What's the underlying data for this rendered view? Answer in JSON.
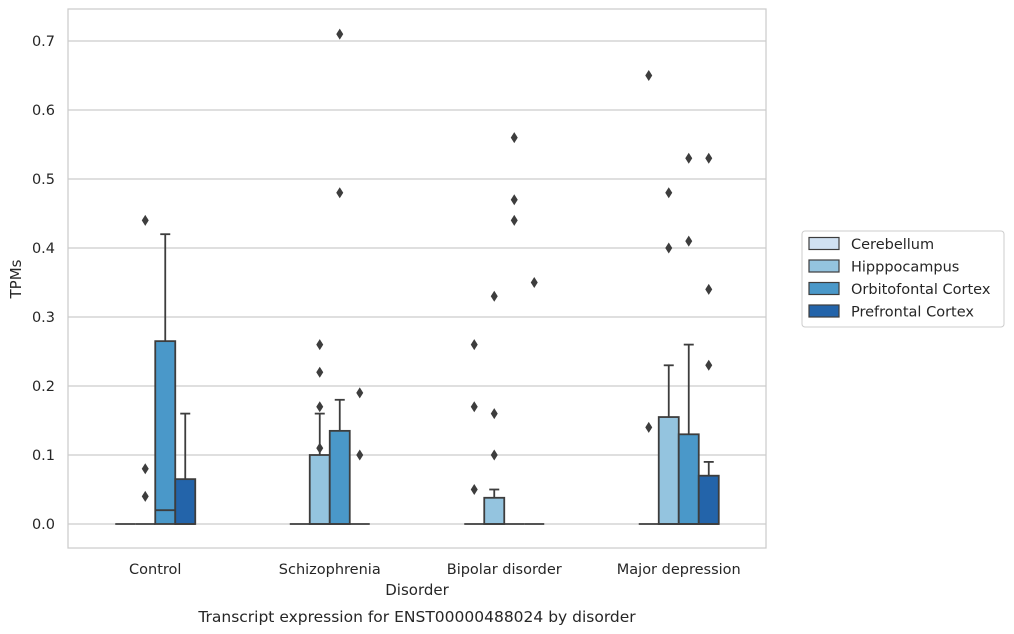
{
  "chart_data": {
    "type": "boxplot",
    "caption": "Transcript expression for ENST00000488024 by disorder",
    "xlabel": "Disorder",
    "ylabel": "TPMs",
    "ylim": [
      -0.035,
      0.745
    ],
    "yticks": [
      0.0,
      0.1,
      0.2,
      0.3,
      0.4,
      0.5,
      0.6,
      0.7
    ],
    "ytick_labels": [
      "0.0",
      "0.1",
      "0.2",
      "0.3",
      "0.4",
      "0.5",
      "0.6",
      "0.7"
    ],
    "grid": "horizontal",
    "legend_position": "right",
    "categories": [
      "Control",
      "Schizophrenia",
      "Bipolar disorder",
      "Major depression"
    ],
    "series": [
      {
        "name": "Cerebellum",
        "color": "#d0e1f2",
        "boxes": [
          {
            "q1": 0,
            "median": 0,
            "q3": 0,
            "whisker_low": 0,
            "whisker_high": 0,
            "outliers": []
          },
          {
            "q1": 0,
            "median": 0,
            "q3": 0,
            "whisker_low": 0,
            "whisker_high": 0,
            "outliers": []
          },
          {
            "q1": 0,
            "median": 0,
            "q3": 0,
            "whisker_low": 0,
            "whisker_high": 0,
            "outliers": [
              0.26,
              0.17,
              0.05
            ]
          },
          {
            "q1": 0,
            "median": 0,
            "q3": 0,
            "whisker_low": 0,
            "whisker_high": 0,
            "outliers": [
              0.65,
              0.14
            ]
          }
        ]
      },
      {
        "name": "Hipppocampus",
        "color": "#94c4df",
        "boxes": [
          {
            "q1": 0,
            "median": 0,
            "q3": 0,
            "whisker_low": 0,
            "whisker_high": 0,
            "outliers": [
              0.44,
              0.08,
              0.04
            ]
          },
          {
            "q1": 0,
            "median": 0,
            "q3": 0.1,
            "whisker_low": 0,
            "whisker_high": 0.16,
            "outliers": [
              0.26,
              0.22,
              0.17,
              0.11
            ]
          },
          {
            "q1": 0,
            "median": 0,
            "q3": 0.038,
            "whisker_low": 0,
            "whisker_high": 0.05,
            "outliers": [
              0.33,
              0.16,
              0.1
            ]
          },
          {
            "q1": 0,
            "median": 0,
            "q3": 0.155,
            "whisker_low": 0,
            "whisker_high": 0.23,
            "outliers": [
              0.48,
              0.4
            ]
          }
        ]
      },
      {
        "name": "Orbitofontal Cortex",
        "color": "#4a98c9",
        "boxes": [
          {
            "q1": 0,
            "median": 0.02,
            "q3": 0.265,
            "whisker_low": 0,
            "whisker_high": 0.42,
            "outliers": []
          },
          {
            "q1": 0,
            "median": 0,
            "q3": 0.135,
            "whisker_low": 0,
            "whisker_high": 0.18,
            "outliers": [
              0.71,
              0.48
            ]
          },
          {
            "q1": 0,
            "median": 0,
            "q3": 0,
            "whisker_low": 0,
            "whisker_high": 0,
            "outliers": [
              0.56,
              0.47,
              0.44
            ]
          },
          {
            "q1": 0,
            "median": 0,
            "q3": 0.13,
            "whisker_low": 0,
            "whisker_high": 0.26,
            "outliers": [
              0.53,
              0.41
            ]
          }
        ]
      },
      {
        "name": "Prefrontal Cortex",
        "color": "#2364aa",
        "boxes": [
          {
            "q1": 0,
            "median": 0,
            "q3": 0.065,
            "whisker_low": 0,
            "whisker_high": 0.16,
            "outliers": []
          },
          {
            "q1": 0,
            "median": 0,
            "q3": 0,
            "whisker_low": 0,
            "whisker_high": 0,
            "outliers": [
              0.19,
              0.1
            ]
          },
          {
            "q1": 0,
            "median": 0,
            "q3": 0,
            "whisker_low": 0,
            "whisker_high": 0,
            "outliers": [
              0.35
            ]
          },
          {
            "q1": 0,
            "median": 0,
            "q3": 0.07,
            "whisker_low": 0,
            "whisker_high": 0.09,
            "outliers": [
              0.53,
              0.34,
              0.23
            ]
          }
        ]
      }
    ]
  }
}
